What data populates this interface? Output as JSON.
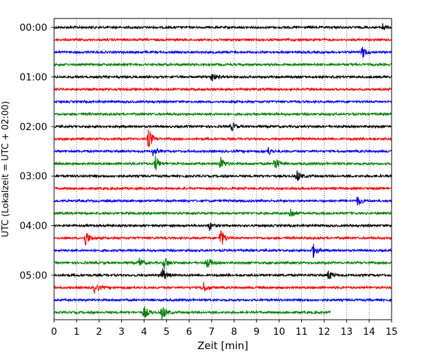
{
  "chart_data": {
    "type": "line",
    "title": "",
    "xlabel": "Zeit  [min]",
    "ylabel": "UTC (Lokalzeit = UTC + 02:00)",
    "xlim": [
      0,
      15
    ],
    "x_ticks": [
      "0",
      "1",
      "2",
      "3",
      "4",
      "5",
      "6",
      "7",
      "8",
      "9",
      "10",
      "11",
      "12",
      "13",
      "14",
      "15"
    ],
    "y_tick_labels": [
      "00:00",
      "01:00",
      "02:00",
      "03:00",
      "04:00",
      "05:00"
    ],
    "grid": "vertical dotted lines at each minute",
    "trace_colors": [
      "#000000",
      "#ff0000",
      "#0000ff",
      "#008000"
    ],
    "traces": [
      {
        "start": "00:00",
        "end_min": 15,
        "events": [
          {
            "t": 14.6,
            "amp": 0.25
          }
        ]
      },
      {
        "start": "00:15",
        "end_min": 15,
        "events": []
      },
      {
        "start": "00:30",
        "end_min": 15,
        "events": [
          {
            "t": 13.7,
            "amp": 0.4
          }
        ]
      },
      {
        "start": "00:45",
        "end_min": 15,
        "events": []
      },
      {
        "start": "01:00",
        "end_min": 15,
        "events": [
          {
            "t": 7.0,
            "amp": 0.35
          }
        ]
      },
      {
        "start": "01:15",
        "end_min": 15,
        "events": []
      },
      {
        "start": "01:30",
        "end_min": 15,
        "events": []
      },
      {
        "start": "01:45",
        "end_min": 15,
        "events": []
      },
      {
        "start": "02:00",
        "end_min": 15,
        "events": [
          {
            "t": 7.9,
            "amp": 0.3
          }
        ]
      },
      {
        "start": "02:15",
        "end_min": 15,
        "events": [
          {
            "t": 4.2,
            "amp": 0.75
          }
        ]
      },
      {
        "start": "02:30",
        "end_min": 15,
        "events": [
          {
            "t": 4.4,
            "amp": 0.3
          },
          {
            "t": 9.5,
            "amp": 0.3
          }
        ]
      },
      {
        "start": "02:45",
        "end_min": 15,
        "events": [
          {
            "t": 4.5,
            "amp": 0.55
          },
          {
            "t": 7.4,
            "amp": 0.45
          },
          {
            "t": 9.8,
            "amp": 0.5
          }
        ]
      },
      {
        "start": "03:00",
        "end_min": 15,
        "events": [
          {
            "t": 10.8,
            "amp": 0.4
          }
        ]
      },
      {
        "start": "03:15",
        "end_min": 15,
        "events": []
      },
      {
        "start": "03:30",
        "end_min": 15,
        "events": [
          {
            "t": 13.5,
            "amp": 0.35
          }
        ]
      },
      {
        "start": "03:45",
        "end_min": 15,
        "events": [
          {
            "t": 10.5,
            "amp": 0.4
          }
        ]
      },
      {
        "start": "04:00",
        "end_min": 15,
        "events": [
          {
            "t": 6.9,
            "amp": 0.3
          }
        ]
      },
      {
        "start": "04:15",
        "end_min": 15,
        "events": [
          {
            "t": 1.4,
            "amp": 0.55
          },
          {
            "t": 7.4,
            "amp": 0.7
          }
        ]
      },
      {
        "start": "04:30",
        "end_min": 15,
        "events": [
          {
            "t": 11.5,
            "amp": 0.5
          }
        ]
      },
      {
        "start": "04:45",
        "end_min": 15,
        "events": [
          {
            "t": 3.8,
            "amp": 0.35
          },
          {
            "t": 4.9,
            "amp": 0.45
          },
          {
            "t": 6.8,
            "amp": 0.45
          }
        ]
      },
      {
        "start": "05:00",
        "end_min": 15,
        "events": [
          {
            "t": 4.8,
            "amp": 0.55
          },
          {
            "t": 12.2,
            "amp": 0.35
          }
        ]
      },
      {
        "start": "05:15",
        "end_min": 15,
        "events": [
          {
            "t": 1.8,
            "amp": 0.35
          },
          {
            "t": 6.6,
            "amp": 0.45
          }
        ]
      },
      {
        "start": "05:30",
        "end_min": 15,
        "events": []
      },
      {
        "start": "05:45",
        "end_min": 12.3,
        "events": [
          {
            "t": 4.0,
            "amp": 0.45
          },
          {
            "t": 4.8,
            "amp": 0.55
          }
        ]
      }
    ]
  }
}
